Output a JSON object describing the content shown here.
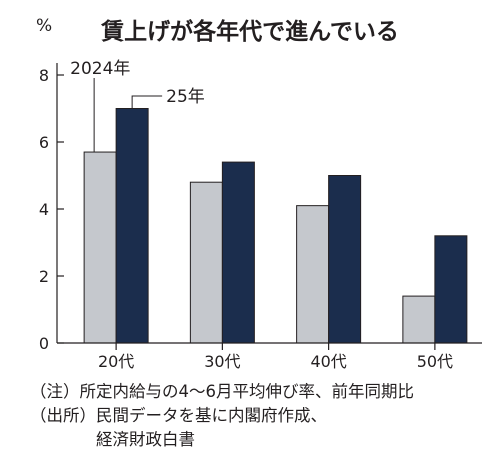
{
  "chart_data": {
    "type": "bar",
    "title": "賃上げが各年代で進んでいる",
    "unit_label": "%",
    "ylim": [
      0,
      8
    ],
    "yticks": [
      "0",
      "2",
      "4",
      "6",
      "8"
    ],
    "categories": [
      "20代",
      "30代",
      "40代",
      "50代"
    ],
    "series": [
      {
        "name": "2024年",
        "values": [
          5.7,
          4.8,
          4.1,
          1.4
        ]
      },
      {
        "name": "25年",
        "values": [
          7.0,
          5.4,
          5.0,
          3.2
        ]
      }
    ],
    "grid": false,
    "legend": "callout labels on first category bars"
  },
  "colors": {
    "series_2024": "#c5c8cd",
    "series_2025": "#1b2d4d",
    "bar_outline": "#231f20",
    "axis": "#231f20"
  },
  "notes": {
    "line1": "（注）所定内給与の4～6月平均伸び率、前年同期比",
    "line2": "（出所）民間データを基に内閣府作成、",
    "line3": "経済財政白書"
  }
}
